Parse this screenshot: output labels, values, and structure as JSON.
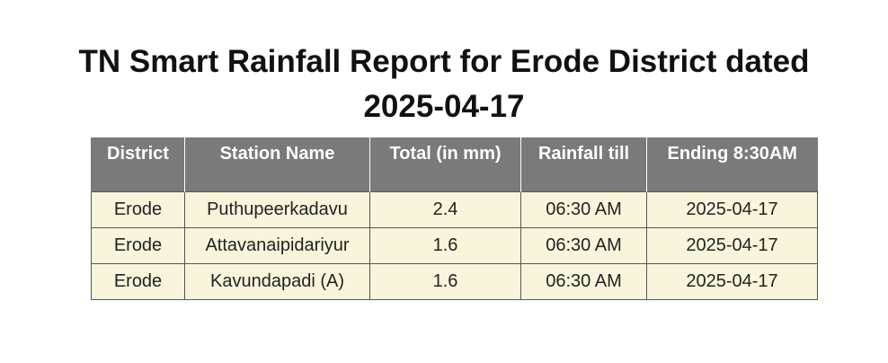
{
  "title": {
    "line1": "TN Smart Rainfall Report for Erode District dated",
    "line2": "2025-04-17"
  },
  "table": {
    "headers": [
      "District",
      "Station Name",
      "Total (in mm)",
      "Rainfall till",
      "Ending 8:30AM"
    ],
    "rows": [
      [
        "Erode",
        "Puthupeerkadavu",
        "2.4",
        "06:30 AM",
        "2025-04-17"
      ],
      [
        "Erode",
        "Attavanaipidariyur",
        "1.6",
        "06:30 AM",
        "2025-04-17"
      ],
      [
        "Erode",
        "Kavundapadi (A)",
        "1.6",
        "06:30 AM",
        "2025-04-17"
      ]
    ]
  },
  "colors": {
    "header_bg": "#7a7a7a",
    "row_bg": "#f8f5dc"
  }
}
